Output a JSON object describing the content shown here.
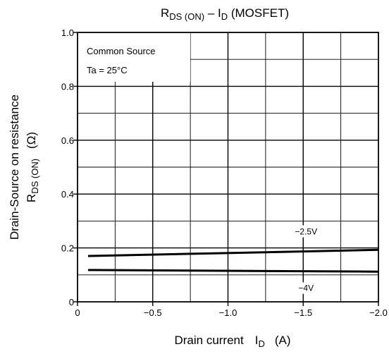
{
  "chart_data": {
    "type": "line",
    "title": {
      "main": "R",
      "main_sub": "DS (ON)",
      "sep": " – I",
      "sep_sub": "D",
      "tail": " (MOSFET)"
    },
    "ylabel": {
      "line1": "Drain-Source on resistance",
      "line2_main": "R",
      "line2_sub": "DS (ON)",
      "line2_unit": "(Ω)"
    },
    "xlabel": {
      "main": "Drain current",
      "symbol": "I",
      "symbol_sub": "D",
      "unit": "(A)"
    },
    "xlim": [
      0,
      -2.0
    ],
    "ylim": [
      0,
      1.0
    ],
    "x_ticks": [
      {
        "value": 0,
        "label": "0"
      },
      {
        "value": -0.5,
        "label": "−0.5"
      },
      {
        "value": -1.0,
        "label": "−1.0"
      },
      {
        "value": -1.5,
        "label": "−1.5"
      },
      {
        "value": -2.0,
        "label": "−2.0"
      }
    ],
    "y_ticks": [
      {
        "value": 0,
        "label": "0"
      },
      {
        "value": 0.2,
        "label": "0.2"
      },
      {
        "value": 0.4,
        "label": "0.4"
      },
      {
        "value": 0.6,
        "label": "0.6"
      },
      {
        "value": 0.8,
        "label": "0.8"
      },
      {
        "value": 1.0,
        "label": "1.0"
      }
    ],
    "grid": true,
    "conditions": [
      "Common Source",
      "Ta = 25°C"
    ],
    "series": [
      {
        "name": "−2.5V",
        "x": [
          -0.07,
          -2.0
        ],
        "y": [
          0.17,
          0.193
        ]
      },
      {
        "name": "−4V",
        "x": [
          -0.07,
          -2.0
        ],
        "y": [
          0.118,
          0.112
        ]
      }
    ]
  }
}
